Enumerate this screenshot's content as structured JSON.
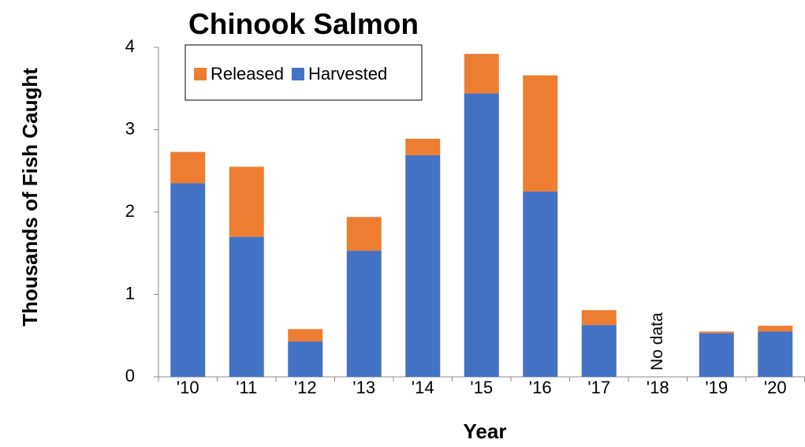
{
  "chart_data": {
    "type": "stacked_bar",
    "title": "Chinook Salmon",
    "x_label": "Year",
    "y_label": "Thousands of Fish Caught",
    "categories": [
      "'10",
      "'11",
      "'12",
      "'13",
      "'14",
      "'15",
      "'16",
      "'17",
      "'18",
      "'19",
      "'20"
    ],
    "series": [
      {
        "name": "Harvested",
        "color": "#4472c4",
        "values": [
          2.35,
          1.7,
          0.43,
          1.53,
          2.69,
          3.44,
          2.25,
          0.63,
          null,
          0.53,
          0.55
        ]
      },
      {
        "name": "Released",
        "color": "#ed7d31",
        "values": [
          0.38,
          0.85,
          0.15,
          0.41,
          0.2,
          0.48,
          1.41,
          0.18,
          null,
          0.02,
          0.07
        ]
      }
    ],
    "annotation": "No data",
    "ylim": [
      0,
      4
    ],
    "yticks": [
      0,
      1,
      2,
      3,
      4
    ],
    "grid": false
  }
}
